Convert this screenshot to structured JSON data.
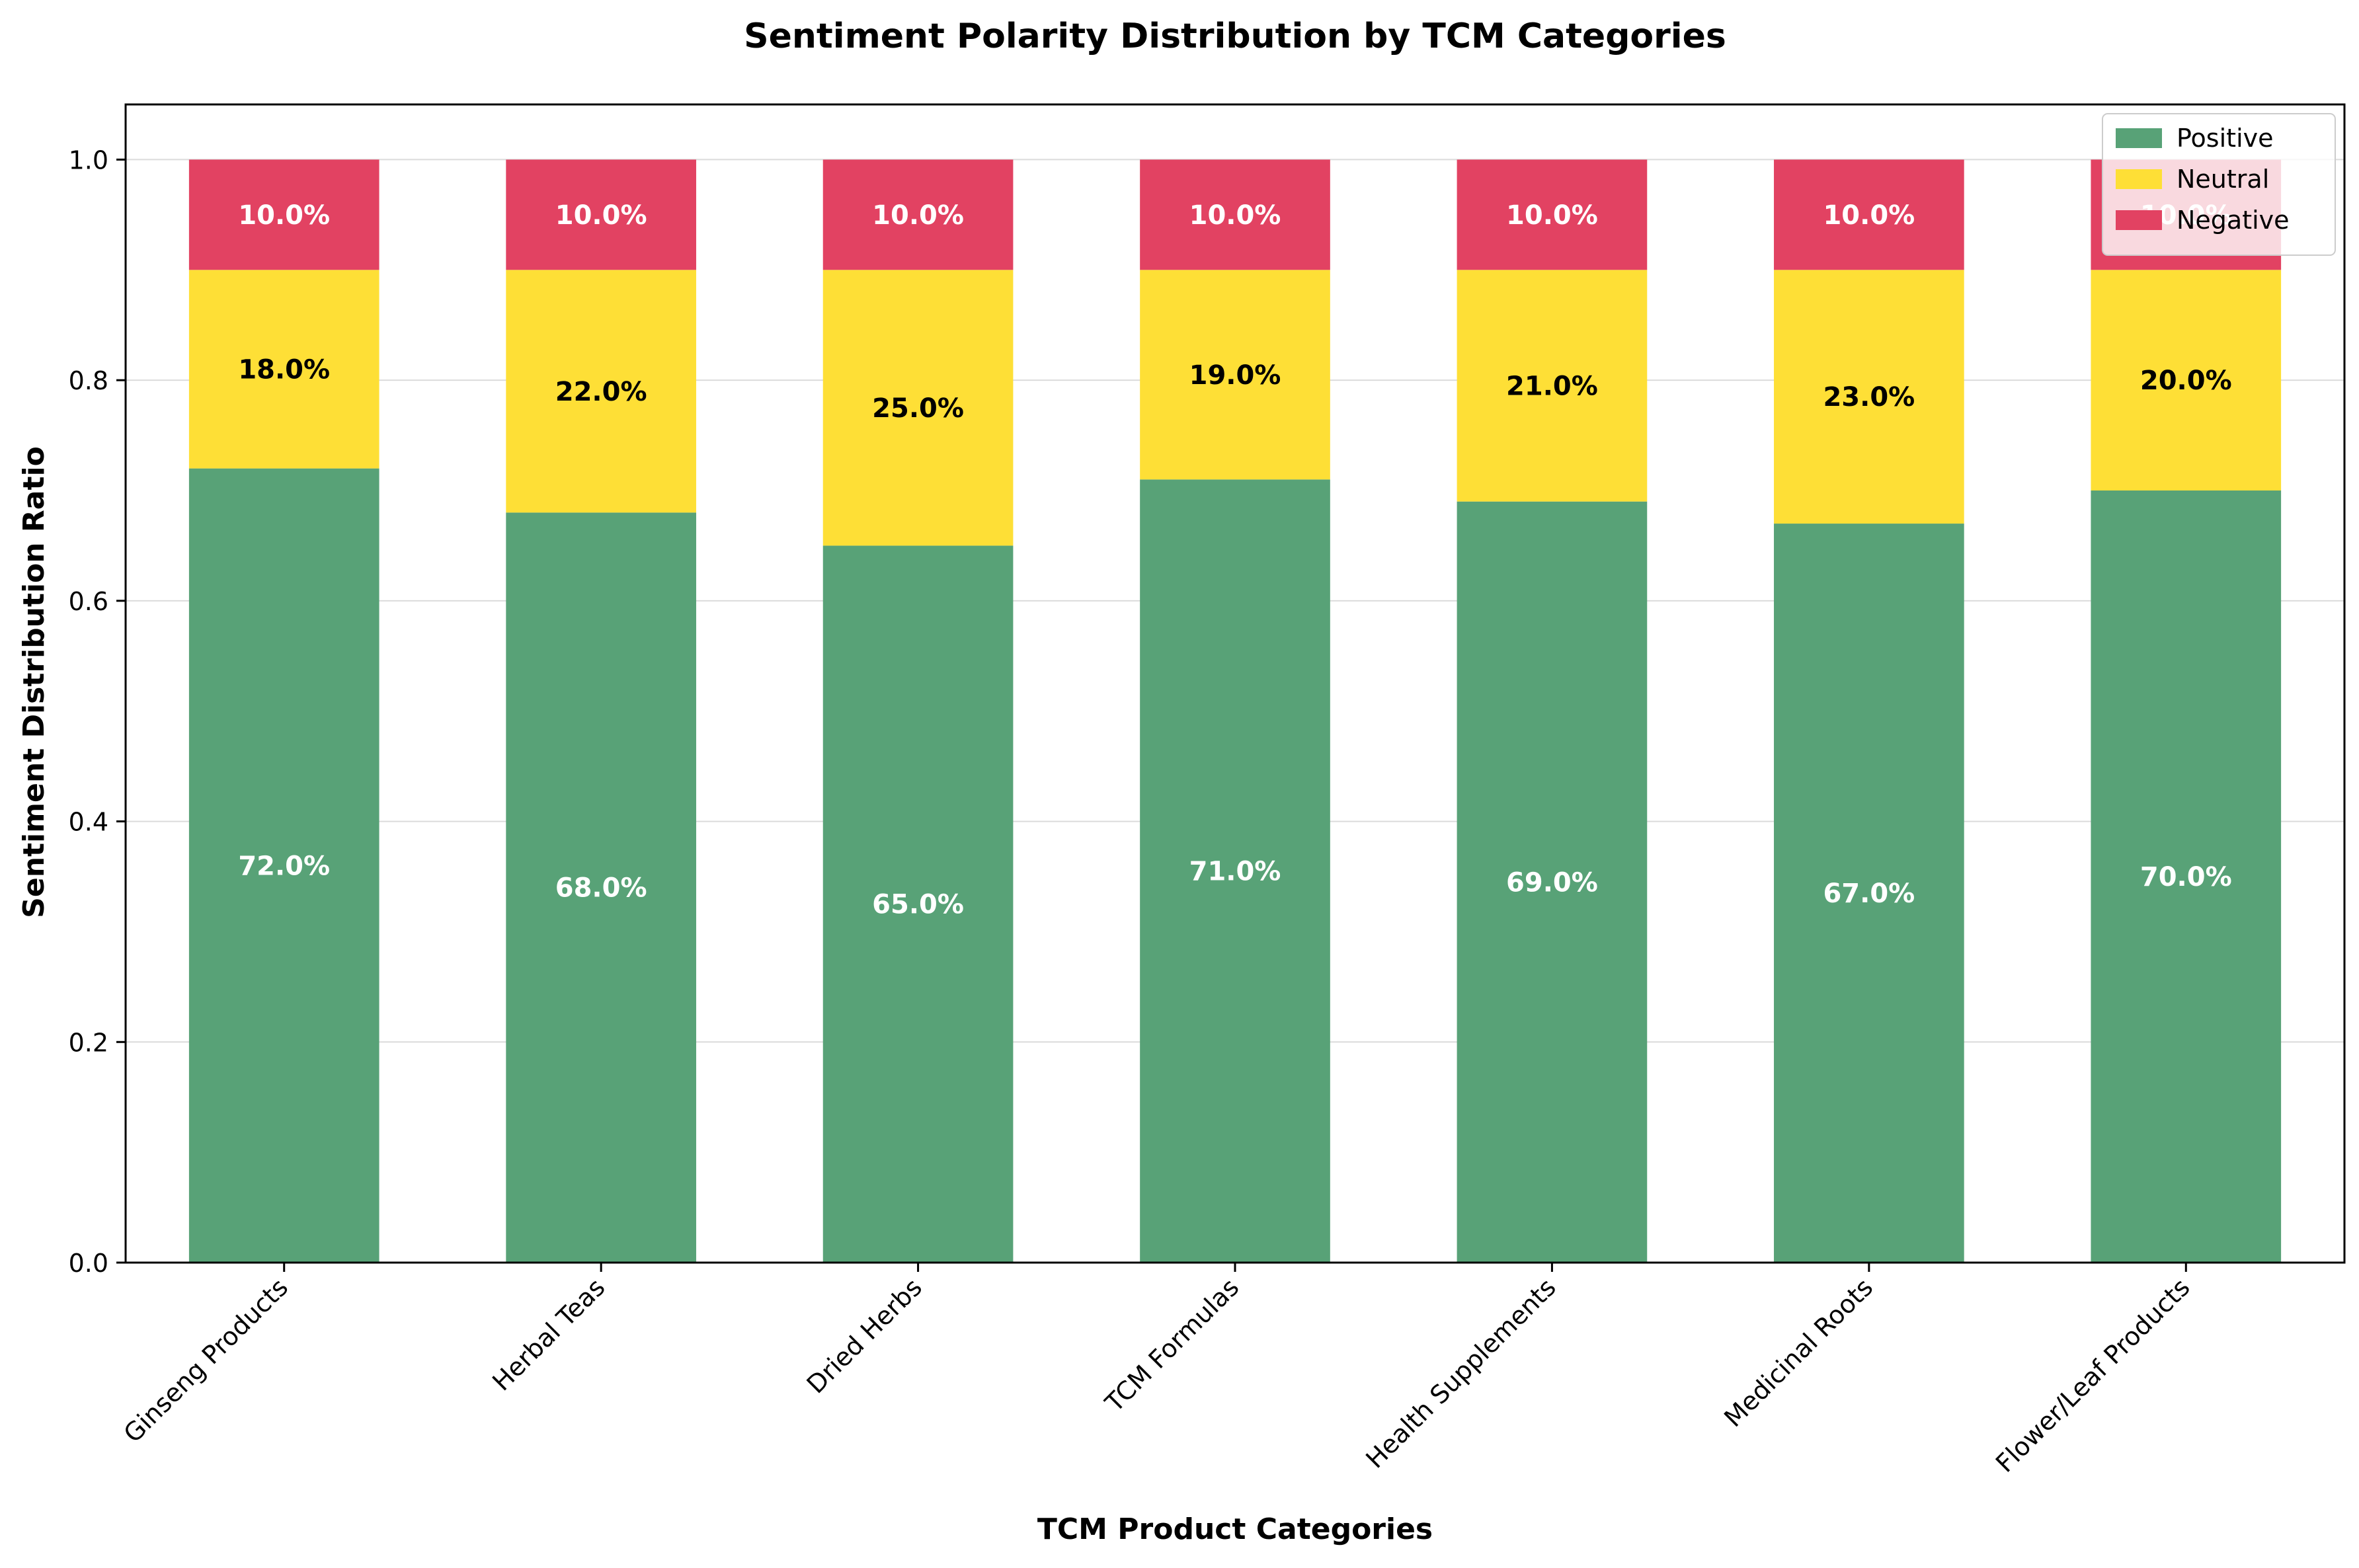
{
  "chart_data": {
    "type": "bar",
    "stacked": true,
    "title": "Sentiment Polarity Distribution by TCM Categories",
    "xlabel": "TCM Product Categories",
    "ylabel": "Sentiment Distribution Ratio",
    "ylim": [
      0,
      1.05
    ],
    "yticks": [
      0.0,
      0.2,
      0.4,
      0.6,
      0.8,
      1.0
    ],
    "ytick_labels": [
      "0.0",
      "0.2",
      "0.4",
      "0.6",
      "0.8",
      "1.0"
    ],
    "grid": true,
    "grid_axis": "y",
    "legend_position": "top-right",
    "categories": [
      "Ginseng Products",
      "Herbal Teas",
      "Dried Herbs",
      "TCM Formulas",
      "Health Supplements",
      "Medicinal Roots",
      "Flower/Leaf Products"
    ],
    "series": [
      {
        "name": "Positive",
        "color": "#58a277",
        "label_color": "#ffffff",
        "values": [
          0.72,
          0.68,
          0.65,
          0.71,
          0.69,
          0.67,
          0.7
        ],
        "labels": [
          "72.0%",
          "68.0%",
          "65.0%",
          "71.0%",
          "69.0%",
          "67.0%",
          "70.0%"
        ]
      },
      {
        "name": "Neutral",
        "color": "#fedf36",
        "label_color": "#000000",
        "values": [
          0.18,
          0.22,
          0.25,
          0.19,
          0.21,
          0.23,
          0.2
        ],
        "labels": [
          "18.0%",
          "22.0%",
          "25.0%",
          "19.0%",
          "21.0%",
          "23.0%",
          "20.0%"
        ]
      },
      {
        "name": "Negative",
        "color": "#e24262",
        "label_color": "#ffffff",
        "values": [
          0.1,
          0.1,
          0.1,
          0.1,
          0.1,
          0.1,
          0.1
        ],
        "labels": [
          "10.0%",
          "10.0%",
          "10.0%",
          "10.0%",
          "10.0%",
          "10.0%",
          "10.0%"
        ]
      }
    ]
  }
}
